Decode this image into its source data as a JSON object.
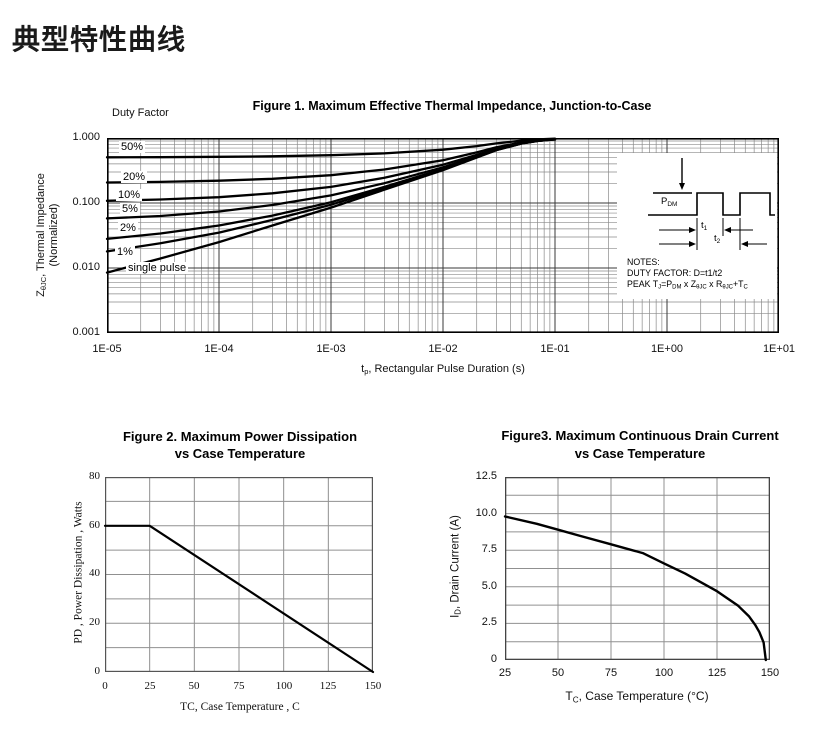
{
  "page_title": "典型特性曲线",
  "fig1": {
    "title": "Figure 1. Maximum Effective Thermal Impedance, Junction-to-Case",
    "duty_factor_label": "Duty Factor",
    "curve_labels": [
      "50%",
      "20%",
      "10%",
      "5%",
      "2%",
      "1%",
      "single pulse"
    ],
    "y_ticks": [
      "1.000",
      "0.100",
      "0.010",
      "0.001"
    ],
    "x_ticks": [
      "1E-05",
      "1E-04",
      "1E-03",
      "1E-02",
      "1E-01",
      "1E+00",
      "1E+01"
    ],
    "xlabel_parts": [
      {
        "t": "t"
      },
      {
        "sub": "p"
      },
      {
        "t": ", Rectangular Pulse Duration (s)"
      }
    ],
    "ylabel_parts": [
      {
        "t": "Z"
      },
      {
        "sub": "θJC"
      },
      {
        "t": ", Thermal Impedance"
      }
    ],
    "ylabel_line2": "(Normalized)",
    "inset": {
      "pdm_parts": [
        {
          "t": "P"
        },
        {
          "sub": "DM"
        }
      ],
      "t1_parts": [
        {
          "t": "t"
        },
        {
          "sub": "1"
        }
      ],
      "t2_parts": [
        {
          "t": "t"
        },
        {
          "sub": "2"
        }
      ],
      "notes": {
        "line1": "NOTES:",
        "line2": "DUTY FACTOR: D=t1/t2",
        "line3_parts": [
          {
            "t": "PEAK T"
          },
          {
            "sub": "J"
          },
          {
            "t": "=P"
          },
          {
            "sub": "DM"
          },
          {
            "t": " x Z"
          },
          {
            "sub": "θJC"
          },
          {
            "t": " x R"
          },
          {
            "sub": "θJC"
          },
          {
            "t": "+T"
          },
          {
            "sub": "C"
          }
        ]
      }
    }
  },
  "fig2": {
    "title_line1": "Figure 2.   Maximum Power Dissipation",
    "title_line2": "vs Case Temperature",
    "y_ticks": [
      "80",
      "60",
      "40",
      "20",
      "0"
    ],
    "x_ticks": [
      "0",
      "25",
      "50",
      "75",
      "100",
      "125",
      "150"
    ],
    "xlabel": "TC, Case Temperature , C",
    "ylabel": "PD , Power Dissipation ,  Watts"
  },
  "fig3": {
    "title_line1": "Figure3.   Maximum Continuous Drain Current",
    "title_line2": "vs Case Temperature",
    "y_ticks": [
      "12.5",
      "10.0",
      "7.5",
      "5.0",
      "2.5",
      "0"
    ],
    "x_ticks": [
      "25",
      "50",
      "75",
      "100",
      "125",
      "150"
    ],
    "xlabel_parts": [
      {
        "t": "T"
      },
      {
        "sub": "C"
      },
      {
        "t": ", Case Temperature (°C)"
      }
    ],
    "ylabel_parts": [
      {
        "t": "I"
      },
      {
        "sub": "D"
      },
      {
        "t": ", Drain Current (A)"
      }
    ]
  },
  "colors": {
    "curve": "#000000",
    "grid_minor": "#8a8a8a",
    "grid_major": "#3a3a3a",
    "grid_gray": "#909090",
    "border": "#000000"
  },
  "chart_data": [
    {
      "type": "line",
      "title": "Figure 1. Maximum Effective Thermal Impedance, Junction-to-Case",
      "xlabel": "tp, Rectangular Pulse Duration (s)",
      "ylabel": "ZθJC, Thermal Impedance (Normalized)",
      "xscale": "log",
      "yscale": "log",
      "xlim": [
        1e-05,
        10
      ],
      "ylim": [
        0.001,
        1.0
      ],
      "grid": true,
      "legend_position": "labels-on-curves",
      "x": [
        1e-05,
        3e-05,
        0.0001,
        0.0003,
        0.001,
        0.003,
        0.01,
        0.02,
        0.03,
        0.05,
        0.07,
        0.1
      ],
      "series": [
        {
          "name": "50%",
          "duty_factor": 0.5,
          "values": [
            0.504,
            0.507,
            0.513,
            0.523,
            0.543,
            0.58,
            0.66,
            0.75,
            0.825,
            0.91,
            0.95,
            0.975
          ]
        },
        {
          "name": "20%",
          "duty_factor": 0.2,
          "values": [
            0.207,
            0.211,
            0.22,
            0.236,
            0.268,
            0.328,
            0.456,
            0.6,
            0.72,
            0.856,
            0.92,
            0.96
          ]
        },
        {
          "name": "10%",
          "duty_factor": 0.1,
          "values": [
            0.108,
            0.113,
            0.123,
            0.141,
            0.177,
            0.244,
            0.388,
            0.55,
            0.685,
            0.838,
            0.91,
            0.955
          ]
        },
        {
          "name": "5%",
          "duty_factor": 0.05,
          "values": [
            0.058,
            0.063,
            0.074,
            0.093,
            0.131,
            0.202,
            0.354,
            0.525,
            0.668,
            0.829,
            0.905,
            0.953
          ]
        },
        {
          "name": "2%",
          "duty_factor": 0.02,
          "values": [
            0.028,
            0.034,
            0.045,
            0.064,
            0.103,
            0.177,
            0.334,
            0.51,
            0.657,
            0.824,
            0.902,
            0.951
          ]
        },
        {
          "name": "1%",
          "duty_factor": 0.01,
          "values": [
            0.018,
            0.024,
            0.035,
            0.055,
            0.094,
            0.168,
            0.327,
            0.505,
            0.654,
            0.822,
            0.901,
            0.951
          ]
        },
        {
          "name": "single pulse",
          "duty_factor": 0,
          "values": [
            0.0085,
            0.014,
            0.025,
            0.045,
            0.085,
            0.16,
            0.32,
            0.5,
            0.65,
            0.82,
            0.9,
            0.95
          ]
        }
      ]
    },
    {
      "type": "line",
      "title": "Figure 2. Maximum Power Dissipation vs Case Temperature",
      "xlabel": "TC, Case Temperature , C",
      "ylabel": "PD , Power Dissipation , Watts",
      "xlim": [
        0,
        150
      ],
      "ylim": [
        0,
        80
      ],
      "x_tick_step": 25,
      "y_grid_step": 10,
      "grid": true,
      "x": [
        0,
        25,
        150
      ],
      "values": [
        60,
        60,
        0
      ]
    },
    {
      "type": "line",
      "title": "Figure3. Maximum Continuous Drain Current vs Case Temperature",
      "xlabel": "TC, Case Temperature (°C)",
      "ylabel": "ID, Drain Current (A)",
      "xlim": [
        25,
        150
      ],
      "ylim": [
        0,
        12.5
      ],
      "x_tick_step": 25,
      "y_grid_step": 1.25,
      "grid": true,
      "x": [
        25,
        40,
        50,
        60,
        75,
        90,
        100,
        110,
        120,
        125,
        130,
        135,
        140,
        143,
        145,
        147,
        148
      ],
      "values": [
        9.8,
        9.3,
        8.9,
        8.5,
        7.9,
        7.3,
        6.6,
        5.9,
        5.1,
        4.7,
        4.2,
        3.7,
        3.0,
        2.4,
        1.9,
        1.2,
        0
      ]
    }
  ]
}
